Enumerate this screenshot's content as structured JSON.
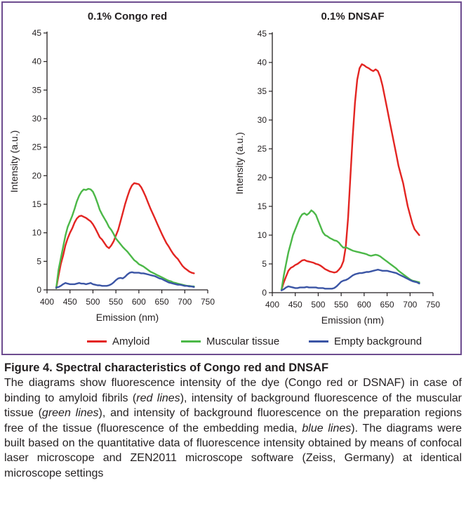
{
  "colors": {
    "amyloid": "#e32522",
    "muscular": "#4cb848",
    "background": "#3b55a5",
    "frame": "#6d4c8f",
    "axis": "#231f20"
  },
  "legend": [
    {
      "label": "Amyloid",
      "color": "#e32522"
    },
    {
      "label": "Muscular tissue",
      "color": "#4cb848"
    },
    {
      "label": "Empty background",
      "color": "#3b55a5"
    }
  ],
  "chart_data": [
    {
      "type": "line",
      "title": "0.1% Congo red",
      "xlabel": "Emission (nm)",
      "ylabel": "Intensity (a.u.)",
      "xlim": [
        400,
        750
      ],
      "ylim": [
        0,
        45
      ],
      "xticks": [
        "400",
        "450",
        "500",
        "550",
        "600",
        "650",
        "700",
        "750"
      ],
      "yticks": [
        "0",
        "5",
        "10",
        "15",
        "20",
        "25",
        "30",
        "35",
        "40",
        "45"
      ],
      "grid": false,
      "legend_position": "bottom",
      "series": [
        {
          "name": "Amyloid",
          "color": "#e32522",
          "x": [
            420,
            425,
            430,
            435,
            440,
            445,
            450,
            455,
            460,
            465,
            470,
            475,
            480,
            485,
            490,
            495,
            500,
            505,
            510,
            515,
            520,
            525,
            530,
            535,
            540,
            545,
            550,
            555,
            560,
            565,
            570,
            575,
            580,
            585,
            590,
            595,
            600,
            605,
            610,
            615,
            620,
            625,
            630,
            635,
            640,
            645,
            650,
            655,
            660,
            665,
            670,
            675,
            680,
            685,
            690,
            695,
            700,
            705,
            710,
            715,
            720
          ],
          "y": [
            0.3,
            2.5,
            4.5,
            6,
            7.8,
            9,
            10,
            10.8,
            11.8,
            12.5,
            12.9,
            13,
            12.8,
            12.6,
            12.3,
            12,
            11.5,
            10.8,
            10,
            9.2,
            8.8,
            8.2,
            7.6,
            7.3,
            7.8,
            8.5,
            9.5,
            10.5,
            12,
            13.5,
            15,
            16.3,
            17.5,
            18.3,
            18.7,
            18.6,
            18.5,
            18,
            17.2,
            16.3,
            15.3,
            14.3,
            13.4,
            12.5,
            11.6,
            10.7,
            9.8,
            9,
            8.2,
            7.6,
            6.9,
            6.3,
            5.8,
            5.4,
            4.8,
            4.2,
            3.8,
            3.5,
            3.2,
            3,
            2.9
          ]
        },
        {
          "name": "Muscular tissue",
          "color": "#4cb848",
          "x": [
            420,
            425,
            430,
            435,
            440,
            445,
            450,
            455,
            460,
            465,
            470,
            475,
            480,
            485,
            490,
            495,
            500,
            505,
            510,
            515,
            520,
            525,
            530,
            535,
            540,
            545,
            550,
            555,
            560,
            565,
            570,
            575,
            580,
            585,
            590,
            595,
            600,
            605,
            610,
            615,
            620,
            625,
            630,
            635,
            640,
            645,
            650,
            655,
            660,
            665,
            670,
            675,
            680,
            685,
            690,
            695,
            700,
            705,
            710,
            715,
            720
          ],
          "y": [
            0.3,
            3.5,
            5.5,
            7.5,
            9.5,
            11,
            12,
            13,
            14.2,
            15.5,
            16.5,
            17.2,
            17.6,
            17.5,
            17.7,
            17.6,
            17.2,
            16.3,
            15.2,
            14,
            13.2,
            12.5,
            11.8,
            11,
            10.5,
            9.8,
            9,
            8.5,
            8,
            7.5,
            7.1,
            6.7,
            6.2,
            5.7,
            5.2,
            4.9,
            4.5,
            4.3,
            4.1,
            3.8,
            3.5,
            3.2,
            3,
            2.8,
            2.6,
            2.4,
            2.2,
            2,
            1.8,
            1.6,
            1.5,
            1.3,
            1.2,
            1.1,
            1,
            0.9,
            0.8,
            0.7,
            0.7,
            0.6,
            0.6
          ]
        },
        {
          "name": "Empty background",
          "color": "#3b55a5",
          "x": [
            420,
            425,
            430,
            435,
            440,
            445,
            450,
            455,
            460,
            465,
            470,
            475,
            480,
            485,
            490,
            495,
            500,
            505,
            510,
            515,
            520,
            525,
            530,
            535,
            540,
            545,
            550,
            555,
            560,
            565,
            570,
            575,
            580,
            585,
            590,
            595,
            600,
            605,
            610,
            615,
            620,
            625,
            630,
            635,
            640,
            645,
            650,
            655,
            660,
            665,
            670,
            675,
            680,
            685,
            690,
            695,
            700,
            705,
            710,
            715,
            720
          ],
          "y": [
            0.4,
            0.5,
            0.7,
            1,
            1.2,
            1.1,
            1,
            1,
            1,
            1.1,
            1.2,
            1.1,
            1.1,
            1,
            1.1,
            1.2,
            1,
            0.9,
            0.8,
            0.8,
            0.7,
            0.7,
            0.7,
            0.8,
            1,
            1.3,
            1.7,
            2,
            2.1,
            2,
            2.3,
            2.7,
            3,
            3.1,
            3,
            3,
            3,
            2.9,
            2.9,
            2.8,
            2.7,
            2.6,
            2.5,
            2.4,
            2.2,
            2,
            1.9,
            1.7,
            1.5,
            1.3,
            1.2,
            1.1,
            1,
            0.9,
            0.9,
            0.8,
            0.7,
            0.7,
            0.6,
            0.6,
            0.5
          ]
        }
      ]
    },
    {
      "type": "line",
      "title": "0.1% DNSAF",
      "xlabel": "Emission (nm)",
      "ylabel": "Intensity (a.u.)",
      "xlim": [
        400,
        750
      ],
      "ylim": [
        0,
        45
      ],
      "xticks": [
        "400",
        "450",
        "500",
        "550",
        "600",
        "650",
        "700",
        "750"
      ],
      "yticks": [
        "0",
        "5",
        "10",
        "15",
        "20",
        "25",
        "30",
        "35",
        "40",
        "45"
      ],
      "grid": false,
      "legend_position": "bottom",
      "series": [
        {
          "name": "Amyloid",
          "color": "#e32522",
          "x": [
            420,
            425,
            430,
            435,
            440,
            445,
            450,
            455,
            460,
            465,
            470,
            475,
            480,
            485,
            490,
            495,
            500,
            505,
            510,
            515,
            520,
            525,
            530,
            535,
            540,
            545,
            550,
            555,
            560,
            565,
            570,
            575,
            580,
            585,
            590,
            595,
            600,
            605,
            610,
            615,
            620,
            625,
            630,
            635,
            640,
            645,
            650,
            655,
            660,
            665,
            670,
            675,
            680,
            685,
            690,
            695,
            700,
            705,
            710,
            715,
            720
          ],
          "y": [
            0.5,
            1.8,
            2.8,
            3.8,
            4.3,
            4.5,
            4.8,
            5,
            5.3,
            5.6,
            5.7,
            5.5,
            5.4,
            5.3,
            5.2,
            5,
            4.9,
            4.7,
            4.4,
            4.1,
            3.9,
            3.7,
            3.6,
            3.5,
            3.6,
            4,
            4.5,
            5.5,
            8,
            13,
            20,
            27,
            33,
            37,
            39,
            39.7,
            39.5,
            39.2,
            39,
            38.7,
            38.5,
            38.8,
            38.5,
            37.5,
            36,
            34,
            32,
            30,
            28,
            26,
            24,
            22,
            20.5,
            19,
            17,
            15,
            13.5,
            12,
            11,
            10.5,
            10
          ]
        },
        {
          "name": "Muscular tissue",
          "color": "#4cb848",
          "x": [
            420,
            425,
            430,
            435,
            440,
            445,
            450,
            455,
            460,
            465,
            470,
            475,
            480,
            485,
            490,
            495,
            500,
            505,
            510,
            515,
            520,
            525,
            530,
            535,
            540,
            545,
            550,
            555,
            560,
            565,
            570,
            575,
            580,
            585,
            590,
            595,
            600,
            605,
            610,
            615,
            620,
            625,
            630,
            635,
            640,
            645,
            650,
            655,
            660,
            665,
            670,
            675,
            680,
            685,
            690,
            695,
            700,
            705,
            710,
            715,
            720
          ],
          "y": [
            0.5,
            3,
            5,
            7,
            8.5,
            10,
            11,
            12,
            13,
            13.6,
            13.8,
            13.5,
            13.8,
            14.3,
            14,
            13.5,
            12.5,
            11.5,
            10.5,
            10,
            9.8,
            9.5,
            9.3,
            9.1,
            9,
            8.7,
            8.2,
            7.8,
            7.9,
            7.7,
            7.5,
            7.3,
            7.2,
            7.1,
            7,
            6.9,
            6.8,
            6.7,
            6.5,
            6.4,
            6.5,
            6.6,
            6.5,
            6.3,
            6,
            5.7,
            5.4,
            5.1,
            4.8,
            4.5,
            4.2,
            3.8,
            3.5,
            3.2,
            2.9,
            2.6,
            2.3,
            2.1,
            2,
            1.9,
            1.8
          ]
        },
        {
          "name": "Empty background",
          "color": "#3b55a5",
          "x": [
            420,
            425,
            430,
            435,
            440,
            445,
            450,
            455,
            460,
            465,
            470,
            475,
            480,
            485,
            490,
            495,
            500,
            505,
            510,
            515,
            520,
            525,
            530,
            535,
            540,
            545,
            550,
            555,
            560,
            565,
            570,
            575,
            580,
            585,
            590,
            595,
            600,
            605,
            610,
            615,
            620,
            625,
            630,
            635,
            640,
            645,
            650,
            655,
            660,
            665,
            670,
            675,
            680,
            685,
            690,
            695,
            700,
            705,
            710,
            715,
            720
          ],
          "y": [
            0.4,
            0.6,
            0.9,
            1.1,
            1,
            0.9,
            0.8,
            0.8,
            0.9,
            0.9,
            0.9,
            1,
            0.9,
            0.9,
            0.9,
            0.9,
            0.8,
            0.8,
            0.8,
            0.7,
            0.7,
            0.7,
            0.7,
            0.8,
            1.1,
            1.5,
            1.9,
            2.1,
            2.2,
            2.4,
            2.7,
            3,
            3.2,
            3.3,
            3.4,
            3.4,
            3.5,
            3.6,
            3.6,
            3.7,
            3.8,
            3.9,
            4,
            3.9,
            3.8,
            3.8,
            3.8,
            3.7,
            3.6,
            3.5,
            3.4,
            3.2,
            3,
            2.8,
            2.6,
            2.4,
            2.2,
            2,
            1.9,
            1.8,
            1.6
          ]
        }
      ]
    }
  ],
  "caption": {
    "title": "Figure 4. Spectral characteristics of Congo red and DNSAF",
    "body_parts": [
      {
        "text": "The diagrams show fluorescence intensity of the dye (Congo red or DSNAF) in case of binding to amyloid fibrils (",
        "italic": false
      },
      {
        "text": "red lines",
        "italic": true
      },
      {
        "text": "), intensity of background fluorescence of the muscular tissue (",
        "italic": false
      },
      {
        "text": "green lines",
        "italic": true
      },
      {
        "text": "), and intensity of background fluorescence on the preparation regions free of the tissue (fluorescence of the embedding media, ",
        "italic": false
      },
      {
        "text": "blue lines",
        "italic": true
      },
      {
        "text": "). The diagrams were built based on the quantitative data of fluorescence intensity obtained by means of confocal laser microscope and ZEN2011 microscope software (Zeiss, Germany) at identical microscope settings",
        "italic": false
      }
    ]
  }
}
